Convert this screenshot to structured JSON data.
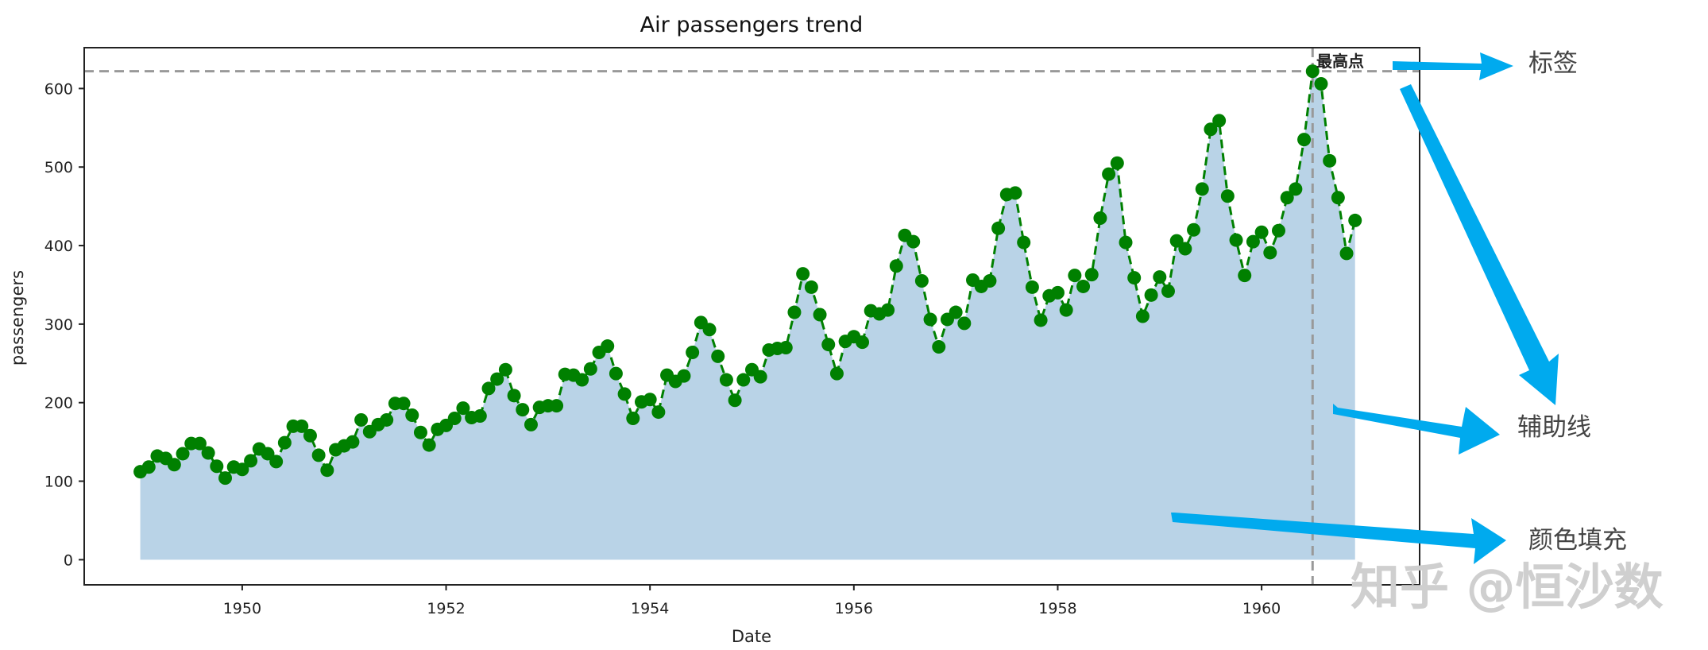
{
  "chart_data": {
    "type": "line",
    "title": "Air passengers trend",
    "xlabel": "Date",
    "ylabel": "passengers",
    "xlim": [
      1948.45,
      1961.55
    ],
    "ylim": [
      -32,
      652
    ],
    "x_ticks": [
      "1950",
      "1952",
      "1954",
      "1956",
      "1958",
      "1960"
    ],
    "y_ticks": [
      "0",
      "100",
      "200",
      "300",
      "400",
      "500",
      "600"
    ],
    "grid": false,
    "legend": null,
    "start": "1949-01",
    "frequency": "monthly",
    "series": [
      {
        "name": "passengers",
        "style": "green dashed line with circle markers, area filled light blue",
        "color": "#008000",
        "fill_color": "#b9d3e7",
        "values": [
          112,
          118,
          132,
          129,
          121,
          135,
          148,
          148,
          136,
          119,
          104,
          118,
          115,
          126,
          141,
          135,
          125,
          149,
          170,
          170,
          158,
          133,
          114,
          140,
          145,
          150,
          178,
          163,
          172,
          178,
          199,
          199,
          184,
          162,
          146,
          166,
          171,
          180,
          193,
          181,
          183,
          218,
          230,
          242,
          209,
          191,
          172,
          194,
          196,
          196,
          236,
          235,
          229,
          243,
          264,
          272,
          237,
          211,
          180,
          201,
          204,
          188,
          235,
          227,
          234,
          264,
          302,
          293,
          259,
          229,
          203,
          229,
          242,
          233,
          267,
          269,
          270,
          315,
          364,
          347,
          312,
          274,
          237,
          278,
          284,
          277,
          317,
          313,
          318,
          374,
          413,
          405,
          355,
          306,
          271,
          306,
          315,
          301,
          356,
          348,
          355,
          422,
          465,
          467,
          404,
          347,
          305,
          336,
          340,
          318,
          362,
          348,
          363,
          435,
          491,
          505,
          404,
          359,
          310,
          337,
          360,
          342,
          406,
          396,
          420,
          472,
          548,
          559,
          463,
          407,
          362,
          405,
          417,
          391,
          419,
          461,
          472,
          535,
          622,
          606,
          508,
          461,
          390,
          432
        ]
      }
    ],
    "reference_lines": {
      "horizontal": {
        "y": 622,
        "color": "#999999",
        "style": "dashed"
      },
      "vertical": {
        "x": "1960-07",
        "color": "#999999",
        "style": "dashed"
      }
    },
    "annotations": [
      {
        "text": "最高点",
        "x": "1960-07",
        "y": 622
      }
    ]
  },
  "callouts": [
    {
      "label": "标签",
      "arrow_color": "#00aaee"
    },
    {
      "label": "辅助线",
      "arrow_color": "#00aaee"
    },
    {
      "label": "颜色填充",
      "arrow_color": "#00aaee"
    }
  ],
  "watermark": "知乎 @恒沙数"
}
